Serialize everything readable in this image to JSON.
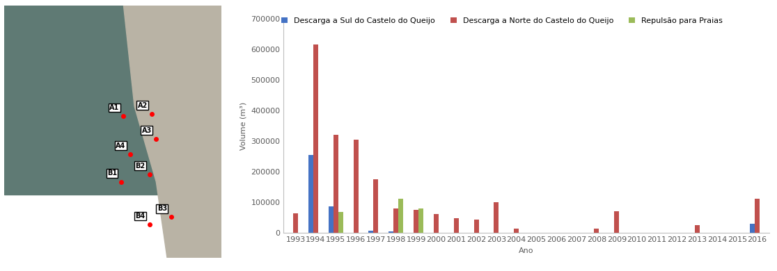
{
  "chart_data": {
    "type": "bar",
    "x_label": "Ano",
    "y_label": "Volume (m³)",
    "categories": [
      "1993",
      "1994",
      "1995",
      "1996",
      "1997",
      "1998",
      "1999",
      "2000",
      "2001",
      "2002",
      "2003",
      "2004",
      "2005",
      "2006",
      "2007",
      "2008",
      "2009",
      "2010",
      "2011",
      "2012",
      "2013",
      "2014",
      "2015",
      "2016"
    ],
    "series": [
      {
        "name": "Descarga a Sul do Castelo do Queijo",
        "color": "#4472c4",
        "values": [
          0,
          255000,
          88000,
          0,
          8000,
          5000,
          0,
          0,
          0,
          0,
          0,
          0,
          0,
          0,
          0,
          0,
          0,
          0,
          0,
          0,
          0,
          0,
          0,
          30000
        ]
      },
      {
        "name": "Descarga a Norte do Castelo do Queijo",
        "color": "#c0504d",
        "values": [
          65000,
          617000,
          322000,
          305000,
          175000,
          80000,
          77000,
          62000,
          48000,
          44000,
          100000,
          14000,
          0,
          0,
          0,
          15000,
          72000,
          0,
          0,
          0,
          27000,
          0,
          0,
          112000
        ]
      },
      {
        "name": "Repulsão para Praias",
        "color": "#9bbb59",
        "values": [
          0,
          0,
          70000,
          0,
          0,
          112000,
          80000,
          0,
          0,
          0,
          0,
          0,
          0,
          0,
          0,
          0,
          0,
          0,
          0,
          0,
          0,
          0,
          0,
          0
        ]
      }
    ],
    "ylim": [
      0,
      700000
    ],
    "yticks": [
      0,
      100000,
      200000,
      300000,
      400000,
      500000,
      600000,
      700000
    ],
    "legend": "upper center",
    "grid": false
  },
  "map": {
    "points": [
      "A1",
      "A2",
      "A3",
      "A4",
      "B1",
      "B2",
      "B3",
      "B4"
    ]
  }
}
